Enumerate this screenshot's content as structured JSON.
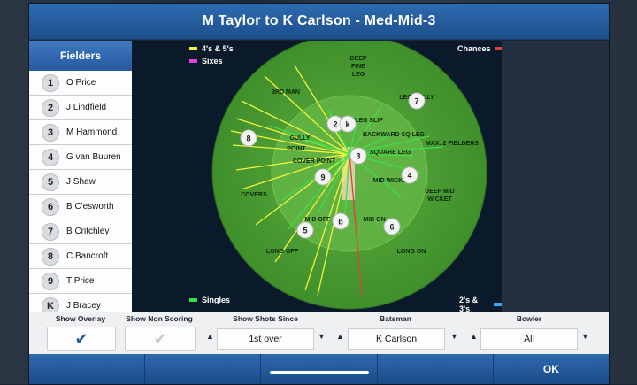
{
  "dialog": {
    "title": "M Taylor to K Carlson - Med-Mid-3"
  },
  "fielders": {
    "header": "Fielders",
    "rows": [
      {
        "num": "1",
        "name": "O Price"
      },
      {
        "num": "2",
        "name": "J Lindfield"
      },
      {
        "num": "3",
        "name": "M Hammond"
      },
      {
        "num": "4",
        "name": "G van Buuren"
      },
      {
        "num": "5",
        "name": "J Shaw"
      },
      {
        "num": "6",
        "name": "B C'esworth"
      },
      {
        "num": "7",
        "name": "B Critchley"
      },
      {
        "num": "8",
        "name": "C Bancroft"
      },
      {
        "num": "9",
        "name": "T Price"
      },
      {
        "num": "K",
        "name": "J Bracey"
      }
    ]
  },
  "legend": {
    "fours_sixes": "4's & 5's",
    "sixes": "Sixes",
    "chances": "Chances",
    "singles": "Singles",
    "twos_threes": "2's & 3's",
    "colors": {
      "fours": "#f2f23c",
      "sixes": "#e040e0",
      "chances": "#e04040",
      "singles": "#3ce04a",
      "twos": "#33aaff"
    }
  },
  "field_labels": {
    "deep_fine_leg": [
      "DEEP",
      "FINE",
      "LEG"
    ],
    "third_man": "3RD MAN",
    "leg_gully": "LEG GULLY",
    "leg_slip": "LEG SLIP",
    "backward_sq_leg": "BACKWARD SQ LEG",
    "gully": "GULLY",
    "point": "POINT",
    "max_2_fielders": "MAX. 2 FIELDERS",
    "square_leg": "SQUARE LEG",
    "cover_point": "COVER POINT",
    "mid_wicket": "MID WICKET",
    "deep_mid_wicket": [
      "DEEP MID",
      "WICKET"
    ],
    "covers": "COVERS",
    "mid_off": "MID OFF",
    "mid_on": "MID ON",
    "long_off": "LONG OFF",
    "long_on": "LONG ON"
  },
  "markers": [
    {
      "label": "7"
    },
    {
      "label": "2"
    },
    {
      "label": "k"
    },
    {
      "label": "8"
    },
    {
      "label": "3"
    },
    {
      "label": "9"
    },
    {
      "label": "4"
    },
    {
      "label": "b"
    },
    {
      "label": "5"
    },
    {
      "label": "6"
    }
  ],
  "controls": {
    "show_overlay_label": "Show Overlay",
    "show_non_scoring_label": "Show Non Scoring",
    "show_shots_since_label": "Show Shots Since",
    "show_shots_since_value": "1st over",
    "batsman_label": "Batsman",
    "batsman_value": "K Carlson",
    "bowler_label": "Bowler",
    "bowler_value": "All"
  },
  "footer": {
    "ok_label": "OK"
  }
}
